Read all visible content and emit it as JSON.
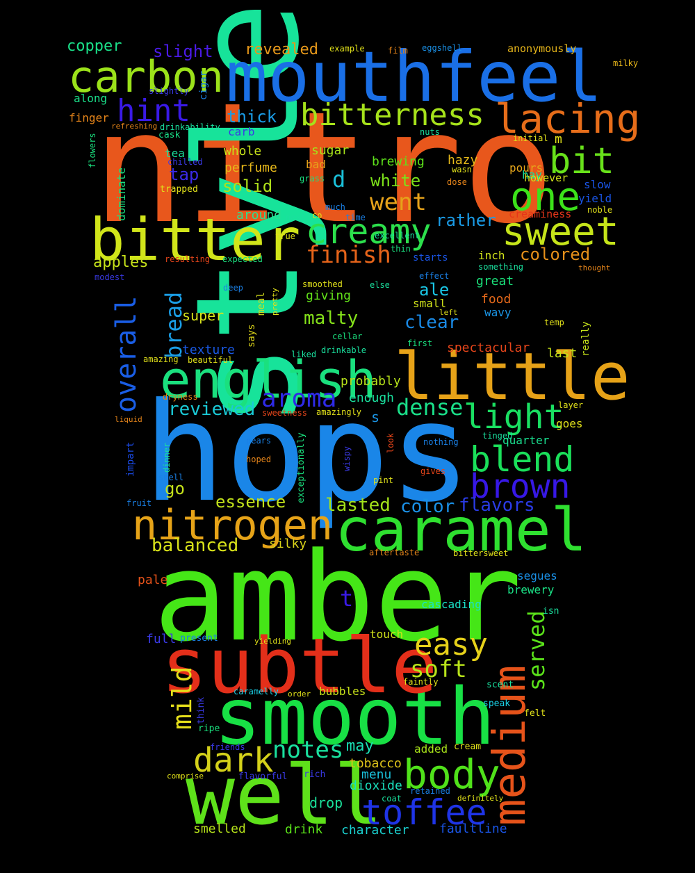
{
  "words": [
    {
      "text": "nitro",
      "color": "#e8571c"
    },
    {
      "text": "style",
      "color": "#17e39a"
    },
    {
      "text": "hops",
      "color": "#1a86e8"
    },
    {
      "text": "amber",
      "color": "#45e617"
    },
    {
      "text": "mouthfeel",
      "color": "#1a6fe6"
    },
    {
      "text": "smooth",
      "color": "#18e045"
    },
    {
      "text": "well",
      "color": "#5ee11a"
    },
    {
      "text": "subtle",
      "color": "#e32f1a"
    },
    {
      "text": "little",
      "color": "#e6a218"
    },
    {
      "text": "caramel",
      "color": "#2fe030"
    },
    {
      "text": "bitter",
      "color": "#d1e51a"
    },
    {
      "text": "english",
      "color": "#1ae07e"
    },
    {
      "text": "carbon",
      "color": "#9be21a"
    },
    {
      "text": "medium",
      "color": "#e6531a"
    },
    {
      "text": "nitrogen",
      "color": "#e6a318"
    },
    {
      "text": "bitterness",
      "color": "#a6e21b"
    },
    {
      "text": "creamy",
      "color": "#2ce04c"
    },
    {
      "text": "lacing",
      "color": "#e66d1a"
    },
    {
      "text": "sweet",
      "color": "#c5e41a"
    },
    {
      "text": "body",
      "color": "#50e21a"
    },
    {
      "text": "toffee",
      "color": "#1f34e6"
    },
    {
      "text": "one",
      "color": "#3ce21a"
    },
    {
      "text": "blend",
      "color": "#1ae05a"
    },
    {
      "text": "brown",
      "color": "#3718e6"
    },
    {
      "text": "bit",
      "color": "#68e21a"
    },
    {
      "text": "light",
      "color": "#1ae062"
    },
    {
      "text": "dark",
      "color": "#d4d11a"
    },
    {
      "text": "easy",
      "color": "#e6d11a"
    },
    {
      "text": "overall",
      "color": "#1a5ee6"
    },
    {
      "text": "hint",
      "color": "#3a1ae6"
    },
    {
      "text": "aroma",
      "color": "#2e2ae6"
    },
    {
      "text": "mild",
      "color": "#e4de1a"
    },
    {
      "text": "finish",
      "color": "#e6641a"
    },
    {
      "text": "went",
      "color": "#e6a21a"
    },
    {
      "text": "soft",
      "color": "#b8e31a"
    },
    {
      "text": "notes",
      "color": "#1ae09e"
    },
    {
      "text": "dense",
      "color": "#1ae08a"
    },
    {
      "text": "served",
      "color": "#5ae11a"
    },
    {
      "text": "bread",
      "color": "#1a9ee6"
    },
    {
      "text": "reviewed",
      "color": "#1ac9d6"
    },
    {
      "text": "lasted",
      "color": "#a3e21a"
    },
    {
      "text": "balanced",
      "color": "#d8e21a"
    },
    {
      "text": "essence",
      "color": "#c2e21a"
    },
    {
      "text": "color",
      "color": "#1a90e6"
    },
    {
      "text": "flavors",
      "color": "#2a3be6"
    },
    {
      "text": "malty",
      "color": "#85e21a"
    },
    {
      "text": "clear",
      "color": "#1a8ae6"
    },
    {
      "text": "rather",
      "color": "#1a9be6"
    },
    {
      "text": "colored",
      "color": "#e6901a"
    },
    {
      "text": "go",
      "color": "#c5e21a"
    },
    {
      "text": "thick",
      "color": "#1a9ce6"
    },
    {
      "text": "copper",
      "color": "#1ae089"
    },
    {
      "text": "slight",
      "color": "#4a1ae6"
    },
    {
      "text": "revealed",
      "color": "#e6981a"
    },
    {
      "text": "apples",
      "color": "#c6e21a"
    },
    {
      "text": "solid",
      "color": "#b0e21a"
    },
    {
      "text": "tap",
      "color": "#3a2ae6"
    },
    {
      "text": "white",
      "color": "#7ce21a"
    },
    {
      "text": "ale",
      "color": "#1ac7e6"
    },
    {
      "text": "d",
      "color": "#1ac0d9"
    },
    {
      "text": "t",
      "color": "#3a1ae6"
    },
    {
      "text": "s",
      "color": "#1a95e6"
    },
    {
      "text": "m",
      "color": "#e0e01a"
    },
    {
      "text": "may",
      "color": "#1ae0b5"
    },
    {
      "text": "drop",
      "color": "#1ae09a"
    },
    {
      "text": "probably",
      "color": "#b7e21a"
    },
    {
      "text": "enough",
      "color": "#1ae09e"
    },
    {
      "text": "tobacco",
      "color": "#e0c51a"
    },
    {
      "text": "dioxide",
      "color": "#1ae0bd"
    },
    {
      "text": "menu",
      "color": "#1ac0d9"
    },
    {
      "text": "character",
      "color": "#1ad0cf"
    },
    {
      "text": "faultline",
      "color": "#1a55e6"
    },
    {
      "text": "smelled",
      "color": "#b5e21a"
    },
    {
      "text": "drink",
      "color": "#5ae21a"
    },
    {
      "text": "added",
      "color": "#a8e21a"
    },
    {
      "text": "bubbles",
      "color": "#c8e21a"
    },
    {
      "text": "silky",
      "color": "#d9d21a"
    },
    {
      "text": "super",
      "color": "#d8e21a"
    },
    {
      "text": "texture",
      "color": "#1a5ae6"
    },
    {
      "text": "whole",
      "color": "#c7e21a"
    },
    {
      "text": "perfume",
      "color": "#e6b81a"
    },
    {
      "text": "sugar",
      "color": "#a6e21a"
    },
    {
      "text": "brewing",
      "color": "#5ee21a"
    },
    {
      "text": "hazy",
      "color": "#e6ba1a"
    },
    {
      "text": "pours",
      "color": "#e6a61a"
    },
    {
      "text": "bad",
      "color": "#e6a21a"
    },
    {
      "text": "around",
      "color": "#2ae090"
    },
    {
      "text": "giving",
      "color": "#63e21a"
    },
    {
      "text": "great",
      "color": "#1ae07a"
    },
    {
      "text": "inch",
      "color": "#d0e21a"
    },
    {
      "text": "small",
      "color": "#d0e21a"
    },
    {
      "text": "food",
      "color": "#e6691a"
    },
    {
      "text": "wavy",
      "color": "#1a95e6"
    },
    {
      "text": "segues",
      "color": "#1a90e6"
    },
    {
      "text": "brewery",
      "color": "#1ae085"
    },
    {
      "text": "cascading",
      "color": "#1ae0c8"
    },
    {
      "text": "touch",
      "color": "#d0e21a"
    },
    {
      "text": "full",
      "color": "#3a3ae6"
    },
    {
      "text": "pale",
      "color": "#e6521a"
    },
    {
      "text": "spectacular",
      "color": "#e6451a"
    },
    {
      "text": "last",
      "color": "#c5e21a"
    },
    {
      "text": "goes",
      "color": "#e0e01a"
    },
    {
      "text": "quarter",
      "color": "#1ae090"
    },
    {
      "text": "tea",
      "color": "#1ae09b"
    },
    {
      "text": "cask",
      "color": "#1ae088"
    },
    {
      "text": "carb",
      "color": "#3a3ae6"
    },
    {
      "text": "finger",
      "color": "#e6851a"
    },
    {
      "text": "along",
      "color": "#1ae08a"
    },
    {
      "text": "dominate",
      "color": "#1ae07e"
    },
    {
      "text": "slow",
      "color": "#1a55e6"
    },
    {
      "text": "yield",
      "color": "#1a55e6"
    },
    {
      "text": "hay",
      "color": "#1ae09a"
    },
    {
      "text": "however",
      "color": "#d0e21a"
    },
    {
      "text": "creaminess",
      "color": "#e6351a"
    },
    {
      "text": "says",
      "color": "#d9d21a"
    },
    {
      "text": "meal",
      "color": "#d8e21a"
    },
    {
      "text": "really",
      "color": "#c5e21a"
    },
    {
      "text": "impart",
      "color": "#1a4ae6"
    },
    {
      "text": "exceptionally",
      "color": "#1ae07e"
    },
    {
      "text": "cigar",
      "color": "#1a80e6"
    },
    {
      "text": "anonymously",
      "color": "#e6b51a"
    },
    {
      "text": "starts",
      "color": "#1a55e6"
    },
    {
      "text": "cream",
      "color": "#e0e01a"
    },
    {
      "text": "scent",
      "color": "#1ae09e"
    },
    {
      "text": "speak",
      "color": "#1ad0e6"
    },
    {
      "text": "felt",
      "color": "#e0e01a"
    },
    {
      "text": "think",
      "color": "#3a3ae6"
    },
    {
      "text": "ripe",
      "color": "#1ae07e"
    },
    {
      "text": "flavorful",
      "color": "#3a3ae6"
    },
    {
      "text": "rich",
      "color": "#3a3ae6"
    },
    {
      "text": "retained",
      "color": "#1a80e6"
    },
    {
      "text": "coat",
      "color": "#1ae09e"
    },
    {
      "text": "definitely",
      "color": "#e0e01a"
    },
    {
      "text": "isn",
      "color": "#1ae09e"
    },
    {
      "text": "present",
      "color": "#1a80e6"
    },
    {
      "text": "yielding",
      "color": "#e0e01a"
    },
    {
      "text": "caramelly",
      "color": "#1ad0e6"
    },
    {
      "text": "order",
      "color": "#e0e01a"
    },
    {
      "text": "faintly",
      "color": "#e0e01a"
    },
    {
      "text": "friends",
      "color": "#3a3ae6"
    },
    {
      "text": "comprise",
      "color": "#e0e01a"
    },
    {
      "text": "aftertaste",
      "color": "#e6851a"
    },
    {
      "text": "bittersweet",
      "color": "#e0e01a"
    },
    {
      "text": "example",
      "color": "#e0e01a"
    },
    {
      "text": "film",
      "color": "#e6851a"
    },
    {
      "text": "eggshell",
      "color": "#1a90e6"
    },
    {
      "text": "milky",
      "color": "#e6b51a"
    },
    {
      "text": "slightly",
      "color": "#3a3ae6"
    },
    {
      "text": "refreshing",
      "color": "#e6851a"
    },
    {
      "text": "drinkability",
      "color": "#1ae09e"
    },
    {
      "text": "nuts",
      "color": "#1ae09e"
    },
    {
      "text": "initial",
      "color": "#e0e01a"
    },
    {
      "text": "chilled",
      "color": "#3a3ae6"
    },
    {
      "text": "flowers",
      "color": "#1ae07e"
    },
    {
      "text": "trapped",
      "color": "#e0e01a"
    },
    {
      "text": "grass",
      "color": "#1ae07e"
    },
    {
      "text": "much",
      "color": "#1a80e6"
    },
    {
      "text": "time",
      "color": "#1a80e6"
    },
    {
      "text": "co",
      "color": "#e0e01a"
    },
    {
      "text": "next",
      "color": "#1ae09e"
    },
    {
      "text": "wasn",
      "color": "#e0e01a"
    },
    {
      "text": "dose",
      "color": "#e6851a"
    },
    {
      "text": "noble",
      "color": "#e0e01a"
    },
    {
      "text": "true",
      "color": "#e0e01a"
    },
    {
      "text": "thin",
      "color": "#1ae07e"
    },
    {
      "text": "something",
      "color": "#1ae09e"
    },
    {
      "text": "thought",
      "color": "#e6851a"
    },
    {
      "text": "resulting",
      "color": "#e6451a"
    },
    {
      "text": "expected",
      "color": "#1ae07e"
    },
    {
      "text": "modest",
      "color": "#3a3ae6"
    },
    {
      "text": "deep",
      "color": "#1a80e6"
    },
    {
      "text": "smoothed",
      "color": "#e0e01a"
    },
    {
      "text": "pretty",
      "color": "#e0e01a"
    },
    {
      "text": "else",
      "color": "#1ae09e"
    },
    {
      "text": "effect",
      "color": "#1a80e6"
    },
    {
      "text": "left",
      "color": "#e0e01a"
    },
    {
      "text": "temp",
      "color": "#e0e01a"
    },
    {
      "text": "cellar",
      "color": "#1ae07e"
    },
    {
      "text": "first",
      "color": "#1ae07e"
    },
    {
      "text": "drinkable",
      "color": "#1ae09e"
    },
    {
      "text": "liked",
      "color": "#1ae09e"
    },
    {
      "text": "amazing",
      "color": "#e0e01a"
    },
    {
      "text": "beautiful",
      "color": "#e0e01a"
    },
    {
      "text": "dryness",
      "color": "#e6851a"
    },
    {
      "text": "liquid",
      "color": "#e6851a"
    },
    {
      "text": "sweetness",
      "color": "#e6451a"
    },
    {
      "text": "amazingly",
      "color": "#e0e01a"
    },
    {
      "text": "layer",
      "color": "#e0e01a"
    },
    {
      "text": "tinged",
      "color": "#1ae09e"
    },
    {
      "text": "nothing",
      "color": "#1a80e6"
    },
    {
      "text": "pears",
      "color": "#1a80e6"
    },
    {
      "text": "hoped",
      "color": "#e6851a"
    },
    {
      "text": "dinner",
      "color": "#1ae09e"
    },
    {
      "text": "smell",
      "color": "#1a80e6"
    },
    {
      "text": "wispy",
      "color": "#3a3ae6"
    },
    {
      "text": "look",
      "color": "#e6451a"
    },
    {
      "text": "pint",
      "color": "#e0e01a"
    },
    {
      "text": "gives",
      "color": "#e6451a"
    },
    {
      "text": "fruit",
      "color": "#1a80e6"
    },
    {
      "text": "excellent",
      "color": "#1ae09e"
    }
  ]
}
